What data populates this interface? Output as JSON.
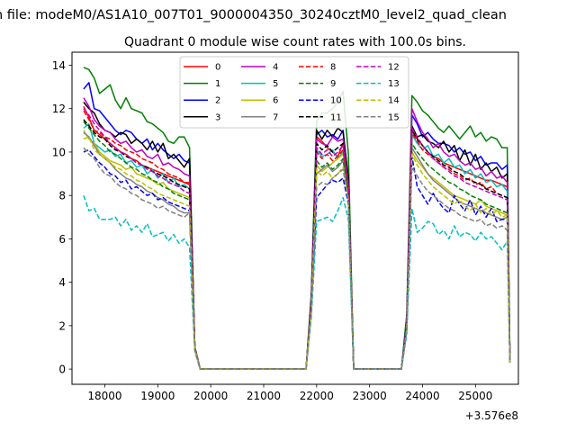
{
  "suptitle": "n file: modeM0/AS1A10_007T01_9000004350_30240cztM0_level2_quad_clean",
  "chart_data": {
    "type": "line",
    "title": "Quadrant 0 module wise count rates with 100.0s bins.",
    "xlabel": "",
    "ylabel": "",
    "offset_label": "+3.576e8",
    "xlim": [
      17380,
      25810
    ],
    "ylim": [
      -0.7,
      14.6
    ],
    "xticks": [
      18000,
      19000,
      20000,
      21000,
      22000,
      23000,
      24000,
      25000
    ],
    "xtick_labels": [
      "18000",
      "19000",
      "20000",
      "21000",
      "22000",
      "23000",
      "24000",
      "25000"
    ],
    "yticks": [
      0,
      2,
      4,
      6,
      8,
      10,
      12,
      14
    ],
    "ytick_labels": [
      "0",
      "2",
      "4",
      "6",
      "8",
      "10",
      "12",
      "14"
    ],
    "grid": false,
    "legend_position": "top-center",
    "legend_columns": 4,
    "x": [
      17600,
      17700,
      17800,
      17900,
      18000,
      18100,
      18200,
      18300,
      18400,
      18500,
      18600,
      18700,
      18800,
      18900,
      19000,
      19100,
      19200,
      19300,
      19400,
      19500,
      19600,
      19700,
      19800,
      19900,
      21800,
      21900,
      22000,
      22100,
      22200,
      22300,
      22400,
      22500,
      22600,
      22700,
      23600,
      23700,
      23800,
      23900,
      24000,
      24100,
      24200,
      24300,
      24400,
      24500,
      24600,
      24700,
      24800,
      24900,
      25000,
      25100,
      25200,
      25300,
      25400,
      25500,
      25600,
      25650
    ],
    "series": [
      {
        "name": "0",
        "color": "#ff0000",
        "dash": "solid",
        "values": [
          12.1,
          11.6,
          11.0,
          10.8,
          10.6,
          10.4,
          10.2,
          10.0,
          9.9,
          9.7,
          9.6,
          9.4,
          9.3,
          9.2,
          9.1,
          9.0,
          8.9,
          8.8,
          8.7,
          8.6,
          8.6,
          1.0,
          0,
          0,
          0,
          3.0,
          10.7,
          10.5,
          10.2,
          10.0,
          9.8,
          10.4,
          8.5,
          0,
          0,
          2.0,
          11.0,
          10.6,
          10.3,
          10.0,
          9.8,
          9.7,
          9.5,
          9.4,
          9.3,
          9.2,
          9.1,
          9.0,
          8.9,
          8.8,
          8.7,
          8.7,
          8.6,
          8.5,
          8.4,
          0.4
        ]
      },
      {
        "name": "1",
        "color": "#008000",
        "dash": "solid",
        "values": [
          13.9,
          13.8,
          13.4,
          12.7,
          12.9,
          13.1,
          12.4,
          12.0,
          12.5,
          12.0,
          11.9,
          11.8,
          11.4,
          11.3,
          11.1,
          10.9,
          10.5,
          10.4,
          10.7,
          10.7,
          10.2,
          1.0,
          0,
          0,
          0,
          3.5,
          11.4,
          11.8,
          11.8,
          12.0,
          12.3,
          12.8,
          9.9,
          0,
          0,
          2.5,
          12.6,
          12.3,
          11.9,
          11.7,
          11.4,
          11.1,
          10.9,
          11.2,
          10.9,
          10.6,
          10.9,
          11.2,
          10.7,
          10.9,
          10.5,
          10.7,
          10.6,
          10.2,
          10.2,
          0.5
        ]
      },
      {
        "name": "2",
        "color": "#0000ff",
        "dash": "solid",
        "values": [
          12.9,
          13.2,
          12.0,
          11.9,
          11.6,
          11.3,
          11.0,
          10.8,
          11.0,
          10.9,
          10.6,
          10.4,
          10.6,
          10.1,
          10.4,
          10.1,
          9.9,
          9.7,
          9.9,
          9.6,
          9.5,
          1.0,
          0,
          0,
          0,
          3.3,
          10.8,
          11.0,
          10.7,
          10.8,
          10.6,
          11.0,
          8.7,
          0,
          0,
          2.2,
          11.7,
          11.3,
          10.7,
          10.9,
          10.6,
          10.4,
          10.4,
          10.3,
          10.0,
          10.2,
          9.9,
          10.0,
          9.6,
          9.8,
          9.4,
          9.5,
          9.5,
          9.2,
          9.4,
          0.4
        ]
      },
      {
        "name": "3",
        "color": "#000000",
        "dash": "solid",
        "values": [
          12.3,
          12.0,
          11.8,
          11.3,
          11.0,
          10.9,
          10.7,
          10.9,
          10.8,
          10.4,
          10.6,
          10.4,
          10.1,
          10.5,
          10.0,
          10.4,
          9.7,
          9.9,
          9.6,
          9.3,
          9.7,
          1.0,
          0,
          0,
          0,
          3.2,
          11.0,
          10.6,
          11.0,
          10.7,
          11.1,
          10.9,
          8.8,
          0,
          0,
          2.1,
          11.2,
          10.7,
          10.8,
          10.5,
          10.4,
          10.2,
          10.5,
          10.0,
          10.3,
          9.6,
          10.1,
          9.4,
          9.9,
          9.2,
          9.5,
          9.1,
          9.3,
          8.8,
          9.0,
          0.4
        ]
      },
      {
        "name": "4",
        "color": "#bf00bf",
        "dash": "solid",
        "values": [
          12.5,
          12.1,
          11.5,
          11.2,
          11.0,
          10.9,
          10.6,
          10.4,
          10.5,
          10.2,
          10.0,
          10.1,
          9.8,
          9.7,
          9.9,
          9.4,
          9.5,
          9.3,
          9.2,
          9.0,
          8.9,
          1.0,
          0,
          0,
          0,
          3.1,
          10.6,
          10.4,
          10.3,
          10.7,
          10.5,
          10.6,
          8.5,
          0,
          0,
          2.1,
          12.0,
          11.4,
          10.9,
          10.6,
          10.2,
          10.4,
          10.0,
          9.8,
          9.9,
          9.6,
          9.4,
          9.5,
          9.2,
          9.3,
          8.9,
          9.1,
          8.8,
          8.9,
          8.6,
          0.4
        ]
      },
      {
        "name": "5",
        "color": "#00bfbf",
        "dash": "solid",
        "values": [
          11.1,
          11.3,
          10.4,
          10.2,
          10.0,
          10.1,
          9.8,
          9.9,
          9.5,
          9.6,
          9.3,
          9.4,
          9.0,
          9.2,
          8.8,
          9.0,
          8.6,
          8.8,
          8.4,
          8.5,
          8.3,
          0.9,
          0,
          0,
          0,
          3.0,
          10.1,
          9.8,
          9.9,
          10.1,
          9.7,
          10.0,
          8.2,
          0,
          0,
          2.0,
          10.8,
          10.4,
          10.1,
          10.3,
          9.8,
          9.9,
          9.5,
          9.7,
          9.3,
          9.4,
          9.0,
          9.2,
          8.8,
          9.0,
          8.6,
          8.7,
          8.4,
          8.5,
          8.2,
          0.4
        ]
      },
      {
        "name": "6",
        "color": "#bfbf00",
        "dash": "solid",
        "values": [
          11.0,
          10.6,
          10.4,
          10.0,
          9.8,
          9.6,
          9.5,
          9.4,
          9.2,
          9.3,
          9.0,
          8.9,
          8.8,
          8.7,
          8.5,
          8.6,
          8.3,
          8.2,
          8.1,
          8.0,
          7.9,
          0.9,
          0,
          0,
          0,
          2.9,
          9.4,
          9.1,
          9.3,
          9.5,
          9.7,
          9.9,
          8.4,
          0,
          0,
          1.9,
          10.0,
          9.6,
          9.3,
          9.0,
          8.8,
          8.6,
          8.4,
          8.2,
          8.0,
          7.9,
          7.8,
          7.7,
          7.6,
          7.8,
          7.5,
          7.4,
          7.3,
          7.2,
          7.1,
          0.3
        ]
      },
      {
        "name": "7",
        "color": "#808080",
        "dash": "solid",
        "values": [
          10.9,
          10.7,
          10.3,
          9.9,
          9.7,
          9.5,
          9.2,
          9.0,
          8.8,
          8.7,
          8.5,
          8.4,
          8.2,
          8.1,
          7.9,
          7.8,
          7.6,
          7.5,
          7.3,
          7.2,
          7.2,
          0.9,
          0,
          0,
          0,
          2.8,
          9.0,
          9.2,
          9.4,
          9.1,
          9.3,
          9.6,
          8.0,
          0,
          0,
          1.8,
          10.2,
          9.8,
          9.4,
          9.0,
          8.7,
          8.5,
          8.3,
          8.1,
          7.9,
          7.7,
          7.6,
          7.5,
          7.4,
          7.3,
          7.2,
          7.1,
          7.0,
          6.9,
          7.0,
          0.3
        ]
      },
      {
        "name": "8",
        "color": "#ff0000",
        "dash": "dashed",
        "values": [
          11.9,
          11.5,
          11.0,
          10.9,
          10.7,
          10.6,
          10.4,
          10.3,
          10.1,
          10.0,
          9.9,
          9.7,
          9.6,
          9.5,
          9.3,
          9.2,
          9.0,
          8.9,
          8.8,
          8.6,
          8.5,
          1.0,
          0,
          0,
          0,
          3.0,
          10.0,
          9.7,
          9.9,
          9.6,
          9.8,
          10.1,
          8.3,
          0,
          0,
          2.0,
          10.9,
          10.5,
          10.1,
          9.9,
          9.7,
          9.5,
          9.3,
          9.2,
          9.0,
          8.9,
          8.7,
          8.8,
          8.5,
          8.6,
          8.3,
          8.4,
          8.1,
          8.0,
          7.9,
          0.4
        ]
      },
      {
        "name": "9",
        "color": "#008000",
        "dash": "dashed",
        "values": [
          11.4,
          11.1,
          10.8,
          10.5,
          10.3,
          10.0,
          9.9,
          9.7,
          9.5,
          9.3,
          9.2,
          9.0,
          8.9,
          8.7,
          8.6,
          8.4,
          8.3,
          8.1,
          8.0,
          7.9,
          7.8,
          0.9,
          0,
          0,
          0,
          2.9,
          9.6,
          9.3,
          9.5,
          9.2,
          9.4,
          9.7,
          8.1,
          0,
          0,
          1.9,
          10.4,
          10.0,
          9.7,
          9.4,
          9.2,
          9.0,
          8.8,
          8.6,
          8.5,
          8.3,
          8.2,
          8.0,
          7.9,
          7.8,
          7.6,
          7.5,
          7.4,
          7.3,
          7.2,
          0.3
        ]
      },
      {
        "name": "10",
        "color": "#0000ff",
        "dash": "dashed",
        "values": [
          10.0,
          10.1,
          9.8,
          9.5,
          9.3,
          9.0,
          8.9,
          8.6,
          8.7,
          8.3,
          8.4,
          8.2,
          8.0,
          8.1,
          7.8,
          7.9,
          7.7,
          7.6,
          7.5,
          7.4,
          7.3,
          0.9,
          0,
          0,
          0,
          2.7,
          7.9,
          8.2,
          8.5,
          8.7,
          8.6,
          8.8,
          7.6,
          0,
          0,
          1.8,
          9.8,
          8.4,
          8.0,
          7.6,
          8.1,
          7.7,
          7.4,
          7.2,
          8.0,
          7.6,
          7.3,
          7.8,
          7.1,
          7.5,
          7.0,
          7.4,
          6.8,
          6.9,
          6.9,
          0.3
        ]
      },
      {
        "name": "11",
        "color": "#000000",
        "dash": "dashed",
        "values": [
          11.5,
          11.2,
          10.9,
          10.7,
          10.6,
          10.3,
          10.1,
          10.0,
          9.8,
          9.7,
          9.5,
          9.4,
          9.3,
          9.1,
          9.0,
          8.9,
          8.8,
          8.6,
          8.5,
          8.4,
          8.3,
          1.0,
          0,
          0,
          0,
          3.0,
          10.4,
          10.1,
          10.3,
          10.0,
          10.2,
          10.4,
          8.5,
          0,
          0,
          2.0,
          11.0,
          10.6,
          10.3,
          10.0,
          9.8,
          9.6,
          9.4,
          9.3,
          9.1,
          9.0,
          8.8,
          8.7,
          8.6,
          8.5,
          8.3,
          8.2,
          8.1,
          8.0,
          7.9,
          0.4
        ]
      },
      {
        "name": "12",
        "color": "#bf00bf",
        "dash": "dashed",
        "values": [
          12.0,
          11.7,
          11.3,
          11.0,
          10.7,
          10.4,
          10.2,
          10.0,
          9.9,
          9.7,
          9.5,
          9.4,
          9.2,
          9.1,
          8.9,
          8.8,
          8.6,
          8.5,
          8.4,
          8.2,
          8.1,
          1.0,
          0,
          0,
          0,
          3.0,
          10.2,
          9.9,
          10.1,
          9.8,
          10.0,
          10.3,
          8.4,
          0,
          0,
          2.0,
          11.1,
          10.7,
          10.3,
          10.0,
          9.7,
          9.5,
          9.3,
          9.1,
          8.9,
          8.8,
          8.6,
          8.5,
          8.4,
          8.3,
          8.2,
          8.1,
          8.0,
          7.9,
          7.8,
          0.4
        ]
      },
      {
        "name": "13",
        "color": "#00bfbf",
        "dash": "dashed",
        "values": [
          8.0,
          7.3,
          7.4,
          6.9,
          6.9,
          6.9,
          7.0,
          6.6,
          6.9,
          6.4,
          6.6,
          6.3,
          6.7,
          6.1,
          6.2,
          6.3,
          5.9,
          6.2,
          5.8,
          6.0,
          5.6,
          0.8,
          0,
          0,
          0,
          2.4,
          6.8,
          6.9,
          7.0,
          6.8,
          7.3,
          7.9,
          6.9,
          0,
          0,
          1.6,
          7.4,
          6.3,
          6.5,
          6.8,
          6.7,
          6.2,
          6.4,
          6.0,
          6.6,
          6.1,
          6.3,
          6.2,
          5.9,
          6.3,
          6.0,
          6.1,
          5.8,
          5.5,
          5.9,
          0.3
        ]
      },
      {
        "name": "14",
        "color": "#bfbf00",
        "dash": "dashed",
        "values": [
          10.6,
          10.7,
          10.1,
          9.9,
          9.7,
          9.5,
          9.3,
          9.2,
          9.0,
          8.9,
          8.7,
          8.6,
          8.4,
          8.3,
          8.1,
          8.0,
          7.9,
          7.8,
          7.7,
          7.6,
          7.5,
          0.9,
          0,
          0,
          0,
          2.8,
          9.2,
          8.9,
          9.1,
          8.8,
          9.0,
          9.3,
          7.8,
          0,
          0,
          1.8,
          9.9,
          9.4,
          9.0,
          8.7,
          8.4,
          8.2,
          8.0,
          7.8,
          7.6,
          7.8,
          7.5,
          7.3,
          7.6,
          7.2,
          7.4,
          7.1,
          7.3,
          7.0,
          7.1,
          0.3
        ]
      },
      {
        "name": "15",
        "color": "#808080",
        "dash": "dashed",
        "values": [
          10.2,
          9.9,
          9.7,
          9.3,
          9.0,
          8.9,
          8.6,
          8.4,
          8.3,
          8.1,
          8.0,
          7.8,
          7.7,
          7.6,
          7.4,
          7.5,
          7.3,
          7.2,
          7.1,
          7.0,
          7.2,
          0.9,
          0,
          0,
          0,
          2.6,
          8.4,
          8.6,
          8.5,
          8.8,
          9.0,
          9.2,
          7.7,
          0,
          0,
          1.7,
          9.3,
          8.9,
          8.5,
          8.2,
          8.0,
          7.8,
          7.6,
          7.4,
          7.3,
          7.1,
          7.0,
          6.9,
          6.8,
          6.9,
          6.6,
          6.7,
          6.5,
          6.6,
          6.4,
          0.3
        ]
      }
    ]
  }
}
